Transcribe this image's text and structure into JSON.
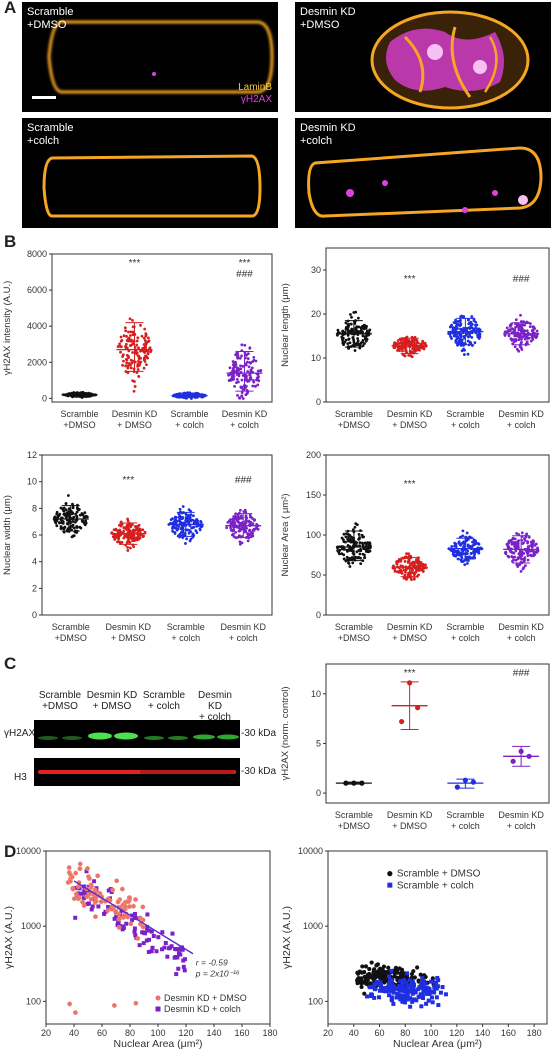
{
  "panels": {
    "a": "A",
    "b": "B",
    "c": "C",
    "d": "D"
  },
  "micrographs": [
    {
      "label": "Scramble\n+DMSO"
    },
    {
      "label": "Desmin KD\n+DMSO"
    },
    {
      "label": "Scramble\n+colch"
    },
    {
      "label": "Desmin KD\n+colch"
    }
  ],
  "legend_stain": {
    "lamin": "LaminB",
    "h2ax": "γH2AX"
  },
  "colors": {
    "scramble_dmso": "#111111",
    "desmin_dmso": "#d61f1f",
    "scramble_colch": "#1f2ee0",
    "desmin_colch": "#7a22c8",
    "lamin": "#f5a623",
    "h2ax": "#e040e0"
  },
  "group_labels": [
    [
      "Scramble",
      "+DMSO"
    ],
    [
      "Desmin KD",
      "+ DMSO"
    ],
    [
      "Scramble",
      "+ colch"
    ],
    [
      "Desmin KD",
      "+ colch"
    ]
  ],
  "chart_data": [
    {
      "id": "b1",
      "type": "scatter",
      "ylabel": "γH2AX intensity (A.U.)",
      "ylim": [
        -200,
        8000
      ],
      "yticks": [
        "0",
        "2000",
        "4000",
        "6000",
        "8000"
      ],
      "means": [
        200,
        2700,
        150,
        1400
      ],
      "sd": [
        [
          100,
          300
        ],
        [
          1500,
          4200
        ],
        [
          50,
          300
        ],
        [
          400,
          2600
        ]
      ],
      "annotations": [
        "",
        "***",
        "",
        "***\n###"
      ]
    },
    {
      "id": "b2",
      "type": "scatter",
      "ylabel": "Nuclear length (μm)",
      "ylim": [
        0,
        35
      ],
      "yticks": [
        "0",
        "10",
        "20",
        "30"
      ],
      "means": [
        15.5,
        12.8,
        16,
        15.5
      ],
      "sd": [
        [
          12.5,
          18.5
        ],
        [
          11,
          14.5
        ],
        [
          13,
          19
        ],
        [
          13,
          18
        ]
      ],
      "annotations": [
        "",
        "***",
        "",
        "###"
      ]
    },
    {
      "id": "b3",
      "type": "scatter",
      "ylabel": "Nuclear width (μm)",
      "ylim": [
        0,
        12
      ],
      "yticks": [
        "0",
        "2",
        "4",
        "6",
        "8",
        "10",
        "12"
      ],
      "means": [
        7.2,
        6.1,
        6.8,
        6.7
      ],
      "sd": [
        [
          6.3,
          8.2
        ],
        [
          5.3,
          6.9
        ],
        [
          5.9,
          7.7
        ],
        [
          5.8,
          7.6
        ]
      ],
      "annotations": [
        "",
        "***",
        "",
        "###"
      ]
    },
    {
      "id": "b4",
      "type": "scatter",
      "ylabel": "Nuclear Area ( μm²)",
      "ylim": [
        0,
        200
      ],
      "yticks": [
        "0",
        "50",
        "100",
        "150",
        "200"
      ],
      "means": [
        85,
        60,
        83,
        82
      ],
      "sd": [
        [
          68,
          105
        ],
        [
          48,
          72
        ],
        [
          70,
          96
        ],
        [
          65,
          99
        ]
      ],
      "annotations": [
        "",
        "***",
        "",
        ""
      ]
    },
    {
      "id": "c",
      "type": "scatter",
      "ylabel": "γH2AX (norm. control)",
      "ylim": [
        -1,
        13
      ],
      "yticks": [
        "0",
        "5",
        "10"
      ],
      "points": [
        [
          1,
          1,
          1
        ],
        [
          7.2,
          11.1,
          8.6
        ],
        [
          0.6,
          1.3,
          1.1
        ],
        [
          3.2,
          4.2,
          3.7
        ]
      ],
      "means": [
        1,
        8.8,
        1,
        3.7
      ],
      "sd": [
        [
          0.9,
          1.1
        ],
        [
          6.4,
          11.2
        ],
        [
          0.5,
          1.4
        ],
        [
          2.7,
          4.7
        ]
      ],
      "annotations": [
        "",
        "***",
        "",
        "###"
      ]
    },
    {
      "id": "d1",
      "type": "scatter",
      "ylabel": "γH2AX (A.U.)",
      "xlabel": "Nuclear Area (μm²)",
      "xlim": [
        20,
        180
      ],
      "xticks": [
        "20",
        "40",
        "60",
        "80",
        "100",
        "120",
        "140",
        "160",
        "180"
      ],
      "ylog": true,
      "ylim": [
        50,
        10000
      ],
      "yticks": [
        "100",
        "1000",
        "10000"
      ],
      "fit": {
        "r": "r = -0.59",
        "p": "p = 2x10⁻¹⁶"
      },
      "series": [
        {
          "name": "Desmin KD + DMSO"
        },
        {
          "name": "Desmin KD + colch"
        }
      ]
    },
    {
      "id": "d2",
      "type": "scatter",
      "ylabel": "γH2AX (A.U.)",
      "xlabel": "Nuclear Area (μm²)",
      "xlim": [
        20,
        190
      ],
      "xticks": [
        "20",
        "40",
        "60",
        "80",
        "100",
        "120",
        "140",
        "160",
        "180"
      ],
      "ylog": true,
      "ylim": [
        50,
        10000
      ],
      "yticks": [
        "100",
        "1000",
        "10000"
      ],
      "series": [
        {
          "name": "Scramble + DMSO"
        },
        {
          "name": "Scramble + colch"
        }
      ]
    }
  ],
  "blot": {
    "rows": [
      {
        "label": "γH2AX",
        "kda": "-30 kDa"
      },
      {
        "label": "H3",
        "kda": "-30 kDa"
      }
    ],
    "lane_groups": [
      [
        "Scramble",
        "+DMSO"
      ],
      [
        "Desmin KD",
        "+ DMSO"
      ],
      [
        "Scramble",
        "+ colch"
      ],
      [
        "Desmin KD",
        "+ colch"
      ]
    ]
  }
}
